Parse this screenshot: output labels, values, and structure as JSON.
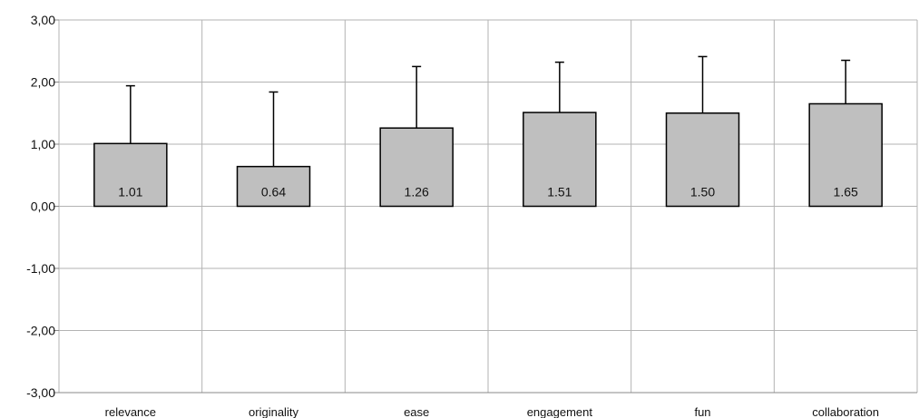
{
  "chart_data": {
    "type": "bar",
    "categories": [
      "relevance",
      "originality",
      "ease",
      "engagement",
      "fun",
      "collaboration"
    ],
    "values": [
      1.01,
      0.64,
      1.26,
      1.51,
      1.5,
      1.65
    ],
    "value_labels": [
      "1.01",
      "0.64",
      "1.26",
      "1.51",
      "1.50",
      "1.65"
    ],
    "error_upper": [
      1.94,
      1.84,
      2.25,
      2.32,
      2.41,
      2.35
    ],
    "ylim": [
      -3,
      3
    ],
    "y_ticks": [
      3,
      2,
      1,
      0,
      -1,
      -2,
      -3
    ],
    "y_tick_labels": [
      "3,00",
      "2,00",
      "1,00",
      "0,00",
      "-1,00",
      "-2,00",
      "-3,00"
    ],
    "title": "",
    "xlabel": "",
    "ylabel": "",
    "grid": true,
    "legend": "none",
    "colors": {
      "bar_fill": "#bfbfbf",
      "bar_stroke": "#000000",
      "grid": "#b3b3b3",
      "axis": "#888888",
      "error_bar": "#000000"
    }
  }
}
